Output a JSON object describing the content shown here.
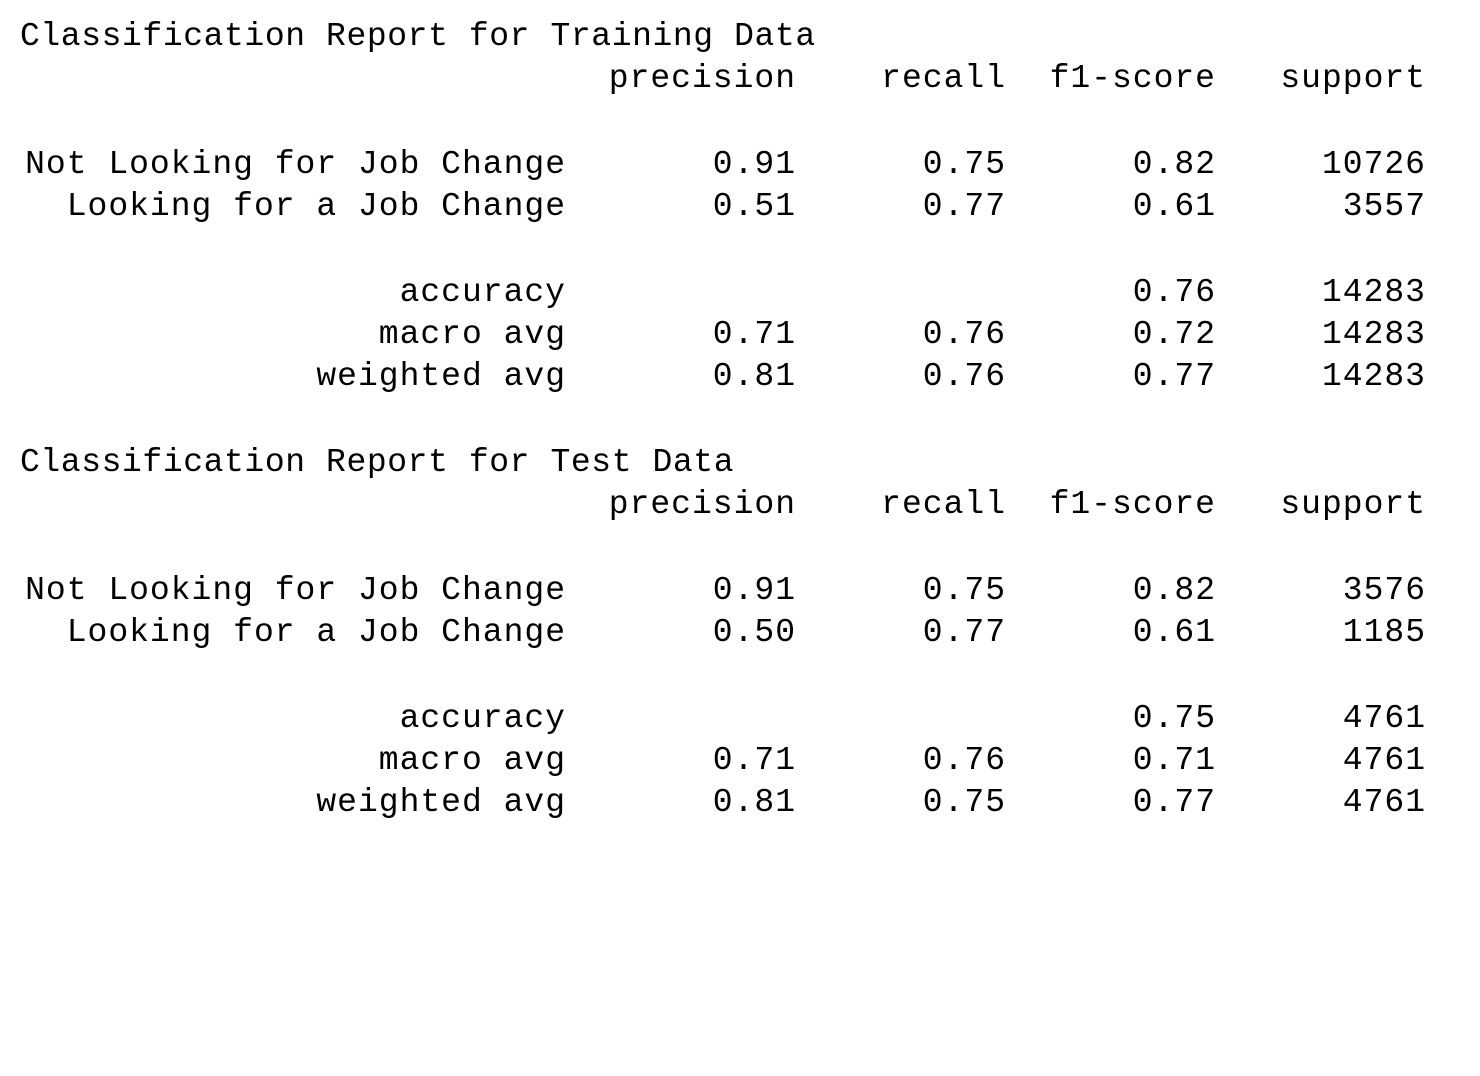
{
  "columns": [
    "precision",
    "recall",
    "f1-score",
    "support"
  ],
  "reports": [
    {
      "title": "Classification Report for Training Data",
      "classes": [
        {
          "label": "Not Looking for Job Change",
          "precision": "0.91",
          "recall": "0.75",
          "f1": "0.82",
          "support": "10726"
        },
        {
          "label": "Looking for a Job Change",
          "precision": "0.51",
          "recall": "0.77",
          "f1": "0.61",
          "support": "3557"
        }
      ],
      "accuracy": {
        "label": "accuracy",
        "f1": "0.76",
        "support": "14283"
      },
      "macro": {
        "label": "macro avg",
        "precision": "0.71",
        "recall": "0.76",
        "f1": "0.72",
        "support": "14283"
      },
      "weighted": {
        "label": "weighted avg",
        "precision": "0.81",
        "recall": "0.76",
        "f1": "0.77",
        "support": "14283"
      }
    },
    {
      "title": "Classification Report for Test Data",
      "classes": [
        {
          "label": "Not Looking for Job Change",
          "precision": "0.91",
          "recall": "0.75",
          "f1": "0.82",
          "support": "3576"
        },
        {
          "label": "Looking for a Job Change",
          "precision": "0.50",
          "recall": "0.77",
          "f1": "0.61",
          "support": "1185"
        }
      ],
      "accuracy": {
        "label": "accuracy",
        "f1": "0.75",
        "support": "4761"
      },
      "macro": {
        "label": "macro avg",
        "precision": "0.71",
        "recall": "0.76",
        "f1": "0.71",
        "support": "4761"
      },
      "weighted": {
        "label": "weighted avg",
        "precision": "0.81",
        "recall": "0.75",
        "f1": "0.77",
        "support": "4761"
      }
    }
  ]
}
